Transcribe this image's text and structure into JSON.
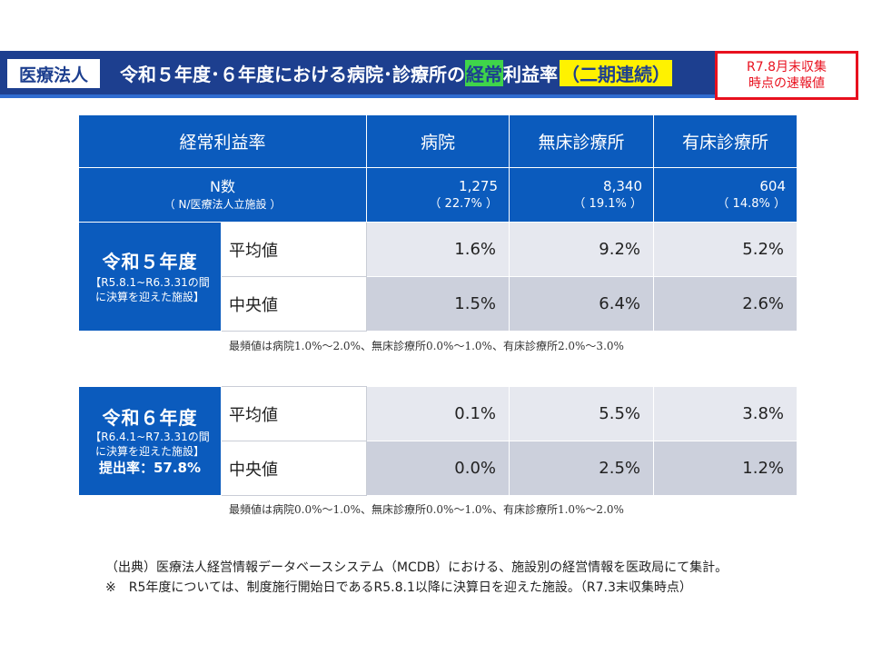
{
  "header": {
    "tag": "医療法人",
    "title_pre": "令和５年度･６年度における病院･診療所の",
    "title_hl": "経常",
    "title_mid": "利益率",
    "title_badge": "（二期連続）",
    "notice_line1": "R7.8月末収集",
    "notice_line2": "時点の速報値"
  },
  "table": {
    "columns": [
      "経常利益率",
      "病院",
      "無床診療所",
      "有床診療所"
    ],
    "n_label": "N数",
    "n_sub": "（ N/医療法人立施設 ）",
    "n_values": [
      {
        "count": "1,275",
        "ratio": "（ 22.7% ）"
      },
      {
        "count": "8,340",
        "ratio": "（ 19.1% ）"
      },
      {
        "count": "604",
        "ratio": "（ 14.8% ）"
      }
    ],
    "metric_labels": [
      "平均値",
      "中央値"
    ],
    "r5": {
      "name": "令和５年度",
      "range": "【R5.8.1~R6.3.31の間に決算を迎えた施設】",
      "mean": [
        "1.6%",
        "9.2%",
        "5.2%"
      ],
      "median": [
        "1.5%",
        "6.4%",
        "2.6%"
      ]
    },
    "r6": {
      "name": "令和６年度",
      "range": "【R6.4.1~R7.3.31の間に決算を迎えた施設】",
      "rate": "提出率：57.8%",
      "mean": [
        "0.1%",
        "5.5%",
        "3.8%"
      ],
      "median": [
        "0.0%",
        "2.5%",
        "1.2%"
      ]
    }
  },
  "notes": {
    "mode_r5": "最頻値は病院1.0%～2.0%、無床診療所0.0%～1.0%、有床診療所2.0%～3.0%",
    "mode_r6": "最頻値は病院0.0%～1.0%、無床診療所0.0%～1.0%、有床診療所1.0%～2.0%"
  },
  "source": {
    "line1": "（出典）医療法人経営情報データベースシステム（MCDB）における、施設別の経営情報を医政局にて集計。",
    "line2": "※　R5年度については、制度施行開始日であるR5.8.1以降に決算日を迎えた施設。（R7.3末収集時点）"
  },
  "colors": {
    "header_navy": "#1d3f8f",
    "table_blue": "#0b5bbd",
    "highlight_green": "#3fd44a",
    "highlight_yellow": "#fff200",
    "notice_red": "#e8101e"
  }
}
